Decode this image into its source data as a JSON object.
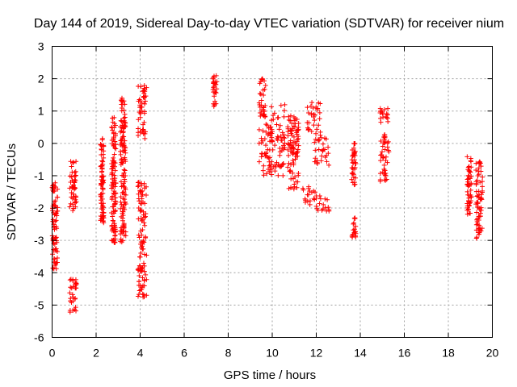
{
  "chart_data": {
    "type": "scatter",
    "title": "Day 144 of 2019, Sidereal Day-to-day VTEC variation (SDTVAR) for receiver nium",
    "xlabel": "GPS time / hours",
    "ylabel": "SDTVAR / TECUs",
    "xlim": [
      0,
      20
    ],
    "ylim": [
      -6,
      3
    ],
    "xticks": [
      0,
      2,
      4,
      6,
      8,
      10,
      12,
      14,
      16,
      18,
      20
    ],
    "yticks": [
      -6,
      -5,
      -4,
      -3,
      -2,
      -1,
      0,
      1,
      2,
      3
    ],
    "grid": true,
    "marker": "+",
    "color": "#ff0000",
    "clusters": [
      {
        "x": [
          0.0,
          0.25
        ],
        "y": [
          -3.9,
          -1.2
        ]
      },
      {
        "x": [
          0.8,
          1.1
        ],
        "y": [
          -5.3,
          -4.2
        ]
      },
      {
        "x": [
          0.8,
          1.1
        ],
        "y": [
          -2.1,
          -0.5
        ]
      },
      {
        "x": [
          2.2,
          2.35
        ],
        "y": [
          -2.5,
          0.2
        ]
      },
      {
        "x": [
          2.7,
          2.9
        ],
        "y": [
          -3.1,
          0.9
        ]
      },
      {
        "x": [
          3.1,
          3.35
        ],
        "y": [
          -3.2,
          1.4
        ]
      },
      {
        "x": [
          3.9,
          4.3
        ],
        "y": [
          -4.8,
          -1.2
        ]
      },
      {
        "x": [
          3.9,
          4.3
        ],
        "y": [
          0.1,
          1.8
        ]
      },
      {
        "x": [
          7.3,
          7.5
        ],
        "y": [
          1.1,
          2.1
        ]
      },
      {
        "x": [
          9.4,
          9.7
        ],
        "y": [
          0.8,
          2.0
        ]
      },
      {
        "x": [
          9.4,
          10.0
        ],
        "y": [
          -1.0,
          0.6
        ]
      },
      {
        "x": [
          9.9,
          10.6
        ],
        "y": [
          -1.0,
          1.2
        ]
      },
      {
        "x": [
          10.7,
          11.2
        ],
        "y": [
          -1.5,
          0.9
        ]
      },
      {
        "x": [
          10.7,
          11.2
        ],
        "y": [
          -0.4,
          0.5
        ]
      },
      {
        "x": [
          11.3,
          12.0
        ],
        "y": [
          -1.9,
          -1.3
        ]
      },
      {
        "x": [
          11.5,
          12.2
        ],
        "y": [
          0.2,
          1.3
        ]
      },
      {
        "x": [
          11.9,
          12.6
        ],
        "y": [
          -0.7,
          0.3
        ]
      },
      {
        "x": [
          12.0,
          12.6
        ],
        "y": [
          -2.1,
          -1.6
        ]
      },
      {
        "x": [
          13.6,
          13.8
        ],
        "y": [
          -2.9,
          -2.3
        ]
      },
      {
        "x": [
          13.6,
          13.8
        ],
        "y": [
          -1.3,
          0.0
        ]
      },
      {
        "x": [
          14.9,
          15.3
        ],
        "y": [
          0.6,
          1.1
        ]
      },
      {
        "x": [
          14.9,
          15.3
        ],
        "y": [
          -1.2,
          0.3
        ]
      },
      {
        "x": [
          18.85,
          19.05
        ],
        "y": [
          -2.2,
          -0.4
        ]
      },
      {
        "x": [
          19.25,
          19.55
        ],
        "y": [
          -3.0,
          -0.5
        ]
      }
    ]
  }
}
